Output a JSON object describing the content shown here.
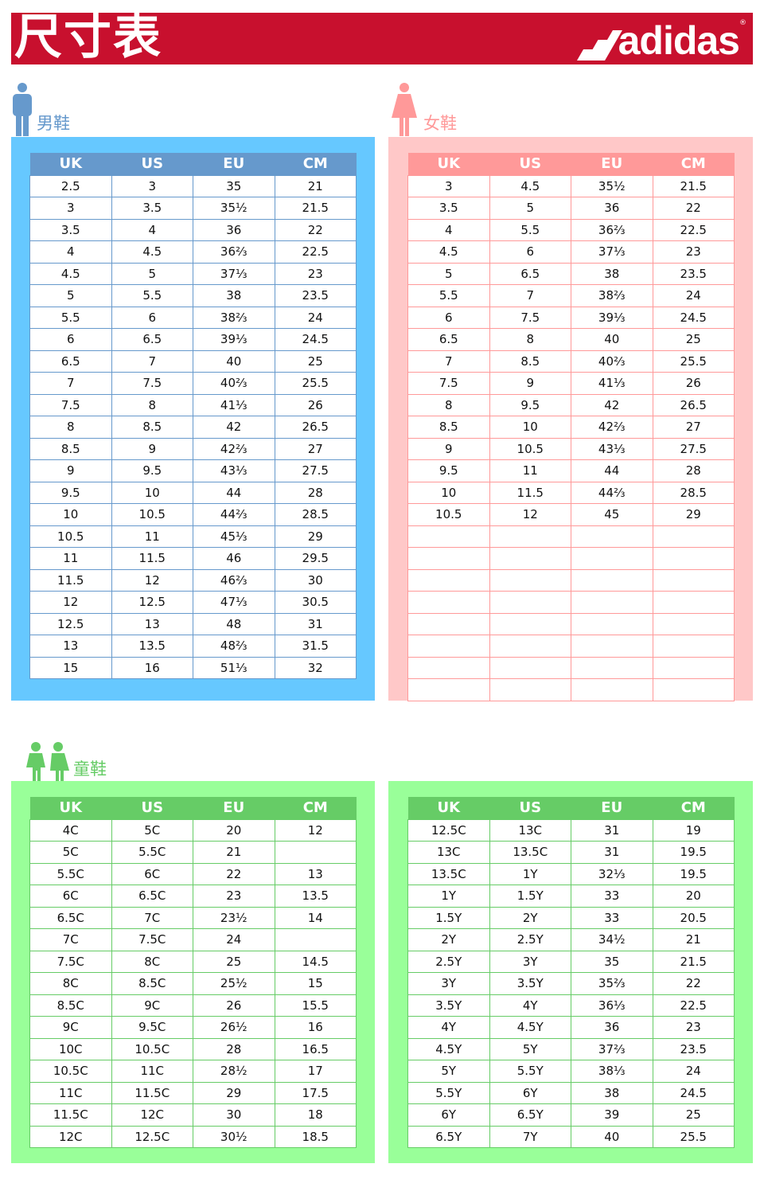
{
  "header": {
    "title": "尺寸表",
    "brand": "adidas",
    "brand_mark": "®"
  },
  "colors": {
    "banner": "#c8102e",
    "men_panel": "#66c8ff",
    "men_header": "#6699cc",
    "women_panel": "#ffc8c8",
    "women_header": "#ff9999",
    "kids_panel": "#99ff99",
    "kids_header": "#66cc66"
  },
  "columns": [
    "UK",
    "US",
    "EU",
    "CM"
  ],
  "men": {
    "label": "男鞋",
    "icon": "man-icon",
    "rows": [
      [
        "2.5",
        "3",
        "35",
        "21"
      ],
      [
        "3",
        "3.5",
        "35½",
        "21.5"
      ],
      [
        "3.5",
        "4",
        "36",
        "22"
      ],
      [
        "4",
        "4.5",
        "36⅔",
        "22.5"
      ],
      [
        "4.5",
        "5",
        "37⅓",
        "23"
      ],
      [
        "5",
        "5.5",
        "38",
        "23.5"
      ],
      [
        "5.5",
        "6",
        "38⅔",
        "24"
      ],
      [
        "6",
        "6.5",
        "39⅓",
        "24.5"
      ],
      [
        "6.5",
        "7",
        "40",
        "25"
      ],
      [
        "7",
        "7.5",
        "40⅔",
        "25.5"
      ],
      [
        "7.5",
        "8",
        "41⅓",
        "26"
      ],
      [
        "8",
        "8.5",
        "42",
        "26.5"
      ],
      [
        "8.5",
        "9",
        "42⅔",
        "27"
      ],
      [
        "9",
        "9.5",
        "43⅓",
        "27.5"
      ],
      [
        "9.5",
        "10",
        "44",
        "28"
      ],
      [
        "10",
        "10.5",
        "44⅔",
        "28.5"
      ],
      [
        "10.5",
        "11",
        "45⅓",
        "29"
      ],
      [
        "11",
        "11.5",
        "46",
        "29.5"
      ],
      [
        "11.5",
        "12",
        "46⅔",
        "30"
      ],
      [
        "12",
        "12.5",
        "47⅓",
        "30.5"
      ],
      [
        "12.5",
        "13",
        "48",
        "31"
      ],
      [
        "13",
        "13.5",
        "48⅔",
        "31.5"
      ],
      [
        "15",
        "16",
        "51⅓",
        "32"
      ]
    ]
  },
  "women": {
    "label": "女鞋",
    "icon": "woman-icon",
    "rows": [
      [
        "3",
        "4.5",
        "35½",
        "21.5"
      ],
      [
        "3.5",
        "5",
        "36",
        "22"
      ],
      [
        "4",
        "5.5",
        "36⅔",
        "22.5"
      ],
      [
        "4.5",
        "6",
        "37⅓",
        "23"
      ],
      [
        "5",
        "6.5",
        "38",
        "23.5"
      ],
      [
        "5.5",
        "7",
        "38⅔",
        "24"
      ],
      [
        "6",
        "7.5",
        "39⅓",
        "24.5"
      ],
      [
        "6.5",
        "8",
        "40",
        "25"
      ],
      [
        "7",
        "8.5",
        "40⅔",
        "25.5"
      ],
      [
        "7.5",
        "9",
        "41⅓",
        "26"
      ],
      [
        "8",
        "9.5",
        "42",
        "26.5"
      ],
      [
        "8.5",
        "10",
        "42⅔",
        "27"
      ],
      [
        "9",
        "10.5",
        "43⅓",
        "27.5"
      ],
      [
        "9.5",
        "11",
        "44",
        "28"
      ],
      [
        "10",
        "11.5",
        "44⅔",
        "28.5"
      ],
      [
        "10.5",
        "12",
        "45",
        "29"
      ],
      [
        "",
        "",
        "",
        ""
      ],
      [
        "",
        "",
        "",
        ""
      ],
      [
        "",
        "",
        "",
        ""
      ],
      [
        "",
        "",
        "",
        ""
      ],
      [
        "",
        "",
        "",
        ""
      ],
      [
        "",
        "",
        "",
        ""
      ],
      [
        "",
        "",
        "",
        ""
      ],
      [
        "",
        "",
        "",
        ""
      ]
    ]
  },
  "kids": {
    "label": "童鞋",
    "icon": "children-icon",
    "left_rows": [
      [
        "4C",
        "5C",
        "20",
        "12"
      ],
      [
        "5C",
        "5.5C",
        "21",
        ""
      ],
      [
        "5.5C",
        "6C",
        "22",
        "13"
      ],
      [
        "6C",
        "6.5C",
        "23",
        "13.5"
      ],
      [
        "6.5C",
        "7C",
        "23½",
        "14"
      ],
      [
        "7C",
        "7.5C",
        "24",
        ""
      ],
      [
        "7.5C",
        "8C",
        "25",
        "14.5"
      ],
      [
        "8C",
        "8.5C",
        "25½",
        "15"
      ],
      [
        "8.5C",
        "9C",
        "26",
        "15.5"
      ],
      [
        "9C",
        "9.5C",
        "26½",
        "16"
      ],
      [
        "10C",
        "10.5C",
        "28",
        "16.5"
      ],
      [
        "10.5C",
        "11C",
        "28½",
        "17"
      ],
      [
        "11C",
        "11.5C",
        "29",
        "17.5"
      ],
      [
        "11.5C",
        "12C",
        "30",
        "18"
      ],
      [
        "12C",
        "12.5C",
        "30½",
        "18.5"
      ]
    ],
    "right_rows": [
      [
        "12.5C",
        "13C",
        "31",
        "19"
      ],
      [
        "13C",
        "13.5C",
        "31",
        "19.5"
      ],
      [
        "13.5C",
        "1Y",
        "32⅓",
        "19.5"
      ],
      [
        "1Y",
        "1.5Y",
        "33",
        "20"
      ],
      [
        "1.5Y",
        "2Y",
        "33",
        "20.5"
      ],
      [
        "2Y",
        "2.5Y",
        "34½",
        "21"
      ],
      [
        "2.5Y",
        "3Y",
        "35",
        "21.5"
      ],
      [
        "3Y",
        "3.5Y",
        "35⅔",
        "22"
      ],
      [
        "3.5Y",
        "4Y",
        "36⅓",
        "22.5"
      ],
      [
        "4Y",
        "4.5Y",
        "36",
        "23"
      ],
      [
        "4.5Y",
        "5Y",
        "37⅔",
        "23.5"
      ],
      [
        "5Y",
        "5.5Y",
        "38⅓",
        "24"
      ],
      [
        "5.5Y",
        "6Y",
        "38",
        "24.5"
      ],
      [
        "6Y",
        "6.5Y",
        "39",
        "25"
      ],
      [
        "6.5Y",
        "7Y",
        "40",
        "25.5"
      ]
    ]
  }
}
